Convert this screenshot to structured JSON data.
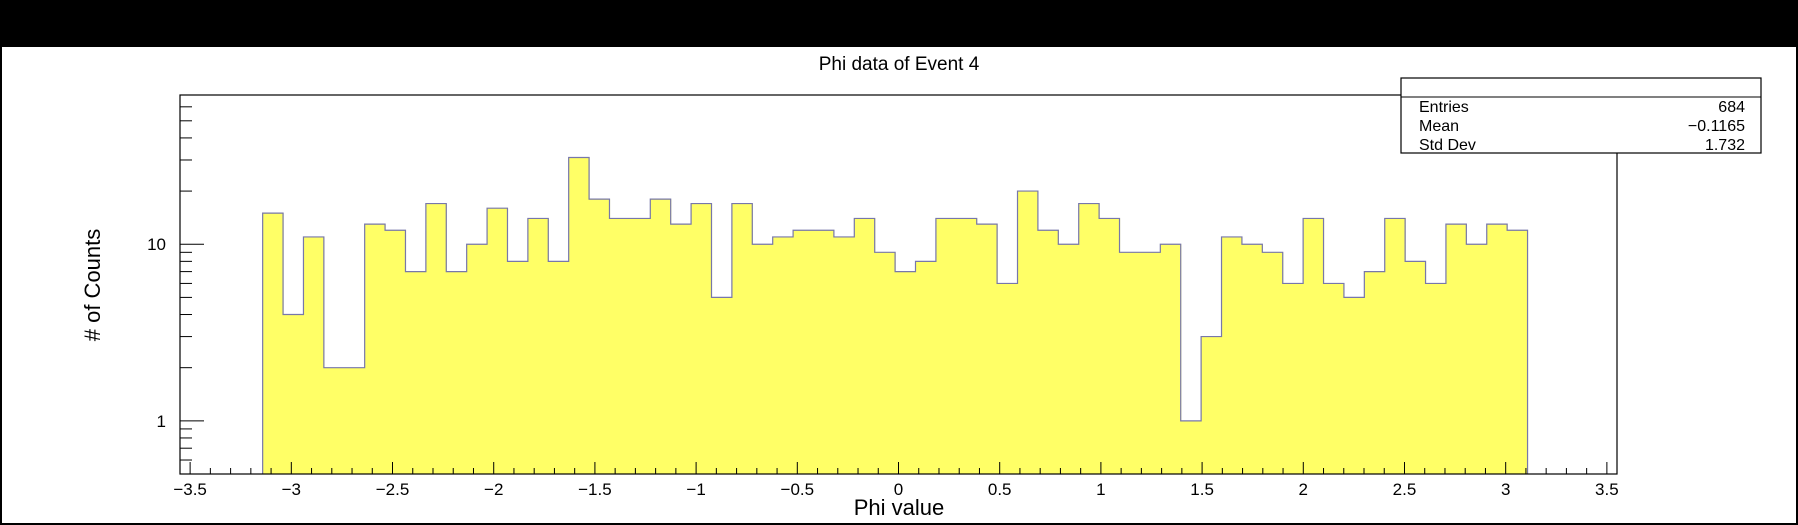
{
  "chart_data": {
    "type": "bar",
    "title": "Phi data of Event 4",
    "xlabel": "Phi value",
    "ylabel": "# of Counts",
    "xlim": [
      -3.55,
      3.55
    ],
    "ylim": [
      0.5,
      70
    ],
    "yscale": "log",
    "grid": false,
    "fill_color": "#ffff66",
    "line_color": "#7777aa",
    "x_ticks": [
      -3.5,
      -3,
      -2.5,
      -2,
      -1.5,
      -1,
      -0.5,
      0,
      0.5,
      1,
      1.5,
      2,
      2.5,
      3,
      3.5
    ],
    "x_tick_labels": [
      "−3.5",
      "−3",
      "−2.5",
      "−2",
      "−1.5",
      "−1",
      "−0.5",
      "0",
      "0.5",
      "1",
      "1.5",
      "2",
      "2.5",
      "3",
      "3.5"
    ],
    "y_ticks": [
      1,
      10
    ],
    "y_tick_labels": [
      "1",
      "10"
    ],
    "bin_edges_range": [
      -3.1416,
      3.1416
    ],
    "bin_width": 0.1008,
    "values": [
      15,
      4,
      11,
      2,
      2,
      13,
      12,
      7,
      17,
      7,
      10,
      16,
      8,
      14,
      8,
      31,
      18,
      14,
      14,
      18,
      13,
      17,
      5,
      17,
      10,
      11,
      12,
      12,
      11,
      14,
      9,
      7,
      8,
      14,
      14,
      13,
      6,
      20,
      12,
      10,
      17,
      14,
      9,
      9,
      10,
      1,
      3,
      11,
      10,
      9,
      6,
      14,
      6,
      5,
      7,
      14,
      8,
      6,
      13,
      10,
      13,
      12
    ]
  },
  "stats": {
    "rows": [
      {
        "label": "Entries",
        "value": "684"
      },
      {
        "label": "Mean",
        "value": "−0.1165"
      },
      {
        "label": "Std Dev",
        "value": "1.732"
      }
    ]
  }
}
